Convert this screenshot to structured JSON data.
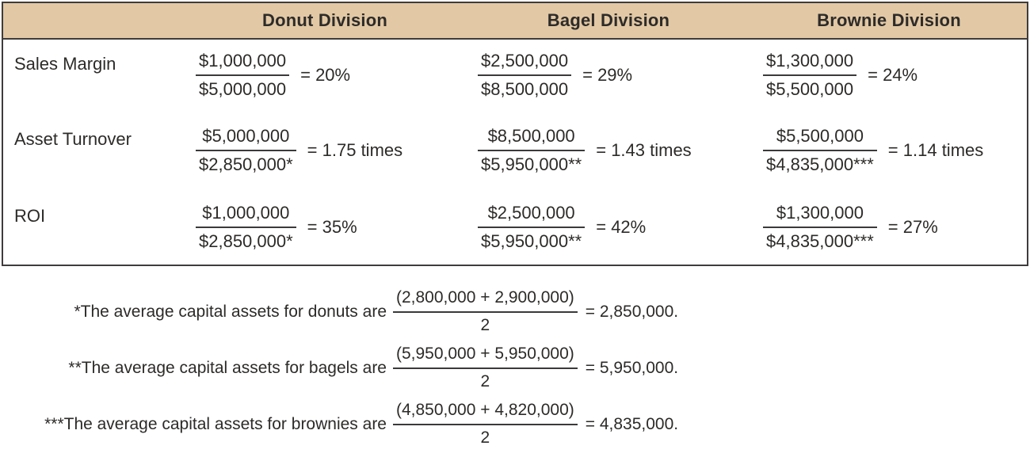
{
  "colors": {
    "header_bg": "#E2C8A4",
    "border": "#3E3C3C",
    "text": "#2D2B29",
    "bar": "#3B3939"
  },
  "table": {
    "columns": [
      {
        "label": "Donut Division"
      },
      {
        "label": "Bagel Division"
      },
      {
        "label": "Brownie Division"
      }
    ],
    "rows": [
      {
        "label": "Sales Margin",
        "cells": [
          {
            "numerator": "$1,000,000",
            "denominator": "$5,000,000",
            "result": "= 20%"
          },
          {
            "numerator": "$2,500,000",
            "denominator": "$8,500,000",
            "result": "= 29%"
          },
          {
            "numerator": "$1,300,000",
            "denominator": "$5,500,000",
            "result": "= 24%"
          }
        ]
      },
      {
        "label": "Asset Turnover",
        "cells": [
          {
            "numerator": "$5,000,000",
            "denominator": "$2,850,000*",
            "result": "= 1.75 times"
          },
          {
            "numerator": "$8,500,000",
            "denominator": "$5,950,000**",
            "result": "= 1.43 times"
          },
          {
            "numerator": "$5,500,000",
            "denominator": "$4,835,000***",
            "result": "= 1.14 times"
          }
        ]
      },
      {
        "label": "ROI",
        "cells": [
          {
            "numerator": "$1,000,000",
            "denominator": "$2,850,000*",
            "result": "= 35%"
          },
          {
            "numerator": "$2,500,000",
            "denominator": "$5,950,000**",
            "result": "= 42%"
          },
          {
            "numerator": "$1,300,000",
            "denominator": "$4,835,000***",
            "result": "= 27%"
          }
        ]
      }
    ]
  },
  "footnotes": [
    {
      "label": "*The average capital assets for donuts are",
      "numerator": "(2,800,000 + 2,900,000)",
      "denominator": "2",
      "result": "= 2,850,000."
    },
    {
      "label": "**The average capital assets for bagels are",
      "numerator": "(5,950,000 + 5,950,000)",
      "denominator": "2",
      "result": "= 5,950,000."
    },
    {
      "label": "***The average capital assets for brownies are",
      "numerator": "(4,850,000 + 4,820,000)",
      "denominator": "2",
      "result": "= 4,835,000."
    }
  ]
}
